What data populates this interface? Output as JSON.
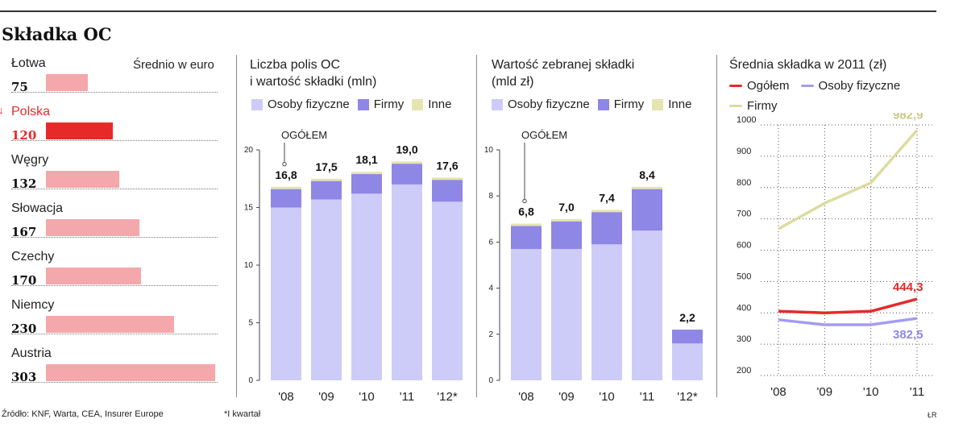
{
  "title": "Składka OC",
  "source": "Źródło: KNF, Warta, CEA, Insurer Europe",
  "footnote": "*I kwartał",
  "credit": "ŁR",
  "colors": {
    "bar_light": "#f4a8ac",
    "bar_highlight": "#e62a2a",
    "osoby": "#cdcbf7",
    "firmy": "#8e87e6",
    "inne": "#e6e4b0",
    "line_ogolem": "#e62a2a",
    "line_osoby": "#a39cf0",
    "line_firmy": "#dcdca0"
  },
  "countries_panel": {
    "subtitle": "Średnio w euro",
    "highlight_marker": "↓",
    "items": [
      {
        "name": "Łotwa",
        "value": "75",
        "highlight": false
      },
      {
        "name": "Polska",
        "value": "120",
        "highlight": true
      },
      {
        "name": "Węgry",
        "value": "132",
        "highlight": false
      },
      {
        "name": "Słowacja",
        "value": "167",
        "highlight": false
      },
      {
        "name": "Czechy",
        "value": "170",
        "highlight": false
      },
      {
        "name": "Niemcy",
        "value": "230",
        "highlight": false
      },
      {
        "name": "Austria",
        "value": "303",
        "highlight": false
      }
    ]
  },
  "legend_stack": {
    "osoby": "Osoby fizyczne",
    "firmy": "Firmy",
    "inne": "Inne"
  },
  "legend_lines": {
    "ogolem": "Ogółem",
    "osoby": "Osoby fizyczne",
    "firmy": "Firmy"
  },
  "chart_data": [
    {
      "type": "bar",
      "title": "Średnio w euro",
      "categories": [
        "Łotwa",
        "Polska",
        "Węgry",
        "Słowacja",
        "Czechy",
        "Niemcy",
        "Austria"
      ],
      "values": [
        75,
        120,
        132,
        167,
        170,
        230,
        303
      ]
    },
    {
      "type": "bar",
      "stacked": true,
      "title_lines": [
        "Liczba polis OC",
        "i wartość składki (mln)"
      ],
      "annotation": "OGÓŁEM",
      "categories": [
        "'08",
        "'09",
        "'10",
        "'11",
        "'12*"
      ],
      "ylim": [
        0,
        20
      ],
      "yticks": [
        0,
        5,
        10,
        15,
        20
      ],
      "totals": [
        "16,8",
        "17,5",
        "18,1",
        "19,0",
        "17,6"
      ],
      "series": [
        {
          "name": "Osoby fizyczne",
          "values": [
            15.0,
            15.7,
            16.2,
            17.0,
            15.5
          ]
        },
        {
          "name": "Firmy",
          "values": [
            1.6,
            1.6,
            1.7,
            1.8,
            1.9
          ]
        },
        {
          "name": "Inne",
          "values": [
            0.2,
            0.2,
            0.2,
            0.2,
            0.2
          ]
        }
      ]
    },
    {
      "type": "bar",
      "stacked": true,
      "title_lines": [
        "Wartość zebranej składki",
        "(mld zł)"
      ],
      "annotation": "OGÓŁEM",
      "categories": [
        "'08",
        "'09",
        "'10",
        "'11",
        "'12*"
      ],
      "ylim": [
        0,
        10
      ],
      "yticks": [
        0,
        2,
        4,
        6,
        8,
        10
      ],
      "totals": [
        "6,8",
        "7,0",
        "7,4",
        "8,4",
        "2,2"
      ],
      "series": [
        {
          "name": "Osoby fizyczne",
          "values": [
            5.7,
            5.7,
            5.9,
            6.5,
            1.6
          ]
        },
        {
          "name": "Firmy",
          "values": [
            1.0,
            1.2,
            1.4,
            1.8,
            0.6
          ]
        },
        {
          "name": "Inne",
          "values": [
            0.1,
            0.1,
            0.1,
            0.1,
            0.0
          ]
        }
      ]
    },
    {
      "type": "line",
      "title": "Średnia składka w 2011 (zł)",
      "x": [
        "'08",
        "'09",
        "'10",
        "'11"
      ],
      "ylim": [
        200,
        1000
      ],
      "yticks": [
        200,
        300,
        400,
        500,
        600,
        700,
        800,
        900,
        1000
      ],
      "grid": true,
      "series": [
        {
          "name": "Ogółem",
          "values": [
            405,
            400,
            405,
            444.3
          ],
          "end_label": "444,3"
        },
        {
          "name": "Osoby fizyczne",
          "values": [
            378,
            362,
            362,
            382.5
          ],
          "end_label": "382,5"
        },
        {
          "name": "Firmy",
          "values": [
            668,
            750,
            815,
            982.9
          ],
          "end_label": "982,9"
        }
      ]
    }
  ]
}
